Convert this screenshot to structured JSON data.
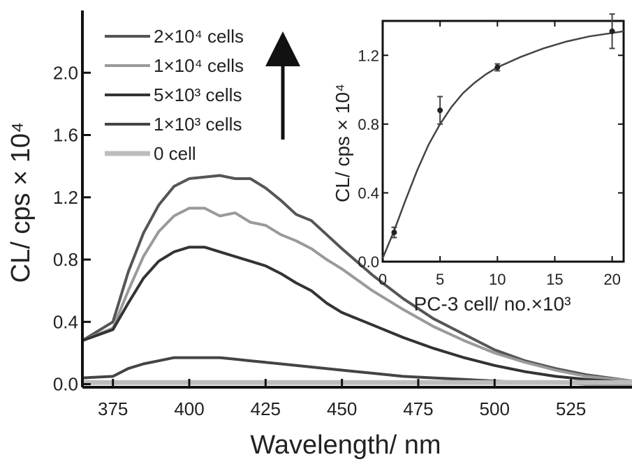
{
  "chart_data": [
    {
      "type": "line",
      "xlabel": "Wavelength/ nm",
      "ylabel": "CL/ cps × 10⁴",
      "xlim": [
        365,
        545
      ],
      "ylim": [
        -0.02,
        2.4
      ],
      "xticks": [
        375,
        400,
        425,
        450,
        475,
        500,
        525
      ],
      "yticks": [
        0.0,
        0.4,
        0.8,
        1.2,
        1.6,
        2.0
      ],
      "xtick_labels": [
        "375",
        "400",
        "425",
        "450",
        "475",
        "500",
        "525"
      ],
      "ytick_labels": [
        "0.0",
        "0.4",
        "0.8",
        "1.2",
        "1.6",
        "2.0"
      ],
      "legend_position": "top-left",
      "legend_arrow": "up",
      "series": [
        {
          "name": "2×10⁴ cells",
          "color": "#555555",
          "x": [
            365,
            375,
            380,
            385,
            390,
            395,
            400,
            405,
            410,
            415,
            420,
            425,
            430,
            435,
            440,
            445,
            450,
            460,
            470,
            480,
            490,
            500,
            510,
            520,
            530,
            545
          ],
          "y": [
            0.28,
            0.4,
            0.72,
            0.97,
            1.15,
            1.27,
            1.32,
            1.33,
            1.34,
            1.32,
            1.32,
            1.26,
            1.18,
            1.09,
            1.05,
            0.96,
            0.87,
            0.7,
            0.55,
            0.42,
            0.32,
            0.22,
            0.15,
            0.1,
            0.06,
            0.02
          ]
        },
        {
          "name": "1×10⁴ cells",
          "color": "#9a9a9a",
          "x": [
            365,
            375,
            380,
            385,
            390,
            395,
            400,
            405,
            410,
            415,
            420,
            425,
            430,
            435,
            440,
            445,
            450,
            460,
            470,
            480,
            490,
            500,
            510,
            520,
            530,
            545
          ],
          "y": [
            0.28,
            0.36,
            0.6,
            0.82,
            0.98,
            1.08,
            1.13,
            1.13,
            1.08,
            1.1,
            1.04,
            1.02,
            0.96,
            0.92,
            0.87,
            0.8,
            0.74,
            0.6,
            0.48,
            0.37,
            0.28,
            0.2,
            0.14,
            0.09,
            0.05,
            0.02
          ]
        },
        {
          "name": "5×10³ cells",
          "color": "#333333",
          "x": [
            365,
            375,
            380,
            385,
            390,
            395,
            400,
            405,
            410,
            415,
            420,
            425,
            430,
            435,
            440,
            445,
            450,
            460,
            470,
            480,
            490,
            500,
            510,
            520,
            530,
            545
          ],
          "y": [
            0.28,
            0.35,
            0.52,
            0.68,
            0.79,
            0.85,
            0.88,
            0.88,
            0.85,
            0.82,
            0.79,
            0.76,
            0.71,
            0.65,
            0.6,
            0.52,
            0.46,
            0.38,
            0.3,
            0.23,
            0.17,
            0.12,
            0.08,
            0.05,
            0.03,
            0.01
          ]
        },
        {
          "name": "1×10³ cells",
          "color": "#444444",
          "x": [
            365,
            375,
            380,
            385,
            390,
            395,
            400,
            405,
            410,
            415,
            420,
            425,
            430,
            435,
            440,
            445,
            450,
            460,
            470,
            480,
            490,
            500,
            510,
            520,
            530,
            545
          ],
          "y": [
            0.04,
            0.05,
            0.1,
            0.13,
            0.15,
            0.17,
            0.17,
            0.17,
            0.17,
            0.16,
            0.15,
            0.14,
            0.13,
            0.12,
            0.11,
            0.1,
            0.09,
            0.07,
            0.05,
            0.04,
            0.03,
            0.02,
            0.01,
            0.01,
            0.0,
            0.0
          ]
        },
        {
          "name": "0 cell",
          "color": "#bdbdbd",
          "x": [
            365,
            400,
            450,
            500,
            545
          ],
          "y": [
            0.01,
            0.01,
            0.01,
            0.01,
            0.01
          ]
        }
      ]
    },
    {
      "type": "scatter",
      "xlabel": "PC-3 cell/ no.×10³",
      "ylabel": "CL/ cps × 10⁴",
      "xlim": [
        0,
        21
      ],
      "ylim": [
        0,
        1.4
      ],
      "xticks": [
        0,
        5,
        10,
        15,
        20
      ],
      "yticks": [
        0.0,
        0.4,
        0.8,
        1.2
      ],
      "xtick_labels": [
        "0",
        "5",
        "10",
        "15",
        "20"
      ],
      "ytick_labels": [
        "0.0",
        "0.4",
        "0.8",
        "1.2"
      ],
      "points": {
        "x": [
          1,
          5,
          10,
          20
        ],
        "y": [
          0.17,
          0.88,
          1.13,
          1.34
        ],
        "yerr": [
          0.03,
          0.08,
          0.02,
          0.1
        ]
      },
      "fit": {
        "x": [
          0,
          1,
          2,
          3,
          4,
          5,
          6,
          7,
          8,
          9,
          10,
          12,
          14,
          16,
          18,
          20,
          21
        ],
        "y": [
          0.02,
          0.18,
          0.36,
          0.53,
          0.68,
          0.8,
          0.9,
          0.98,
          1.04,
          1.09,
          1.13,
          1.19,
          1.24,
          1.28,
          1.31,
          1.33,
          1.34
        ]
      }
    }
  ]
}
